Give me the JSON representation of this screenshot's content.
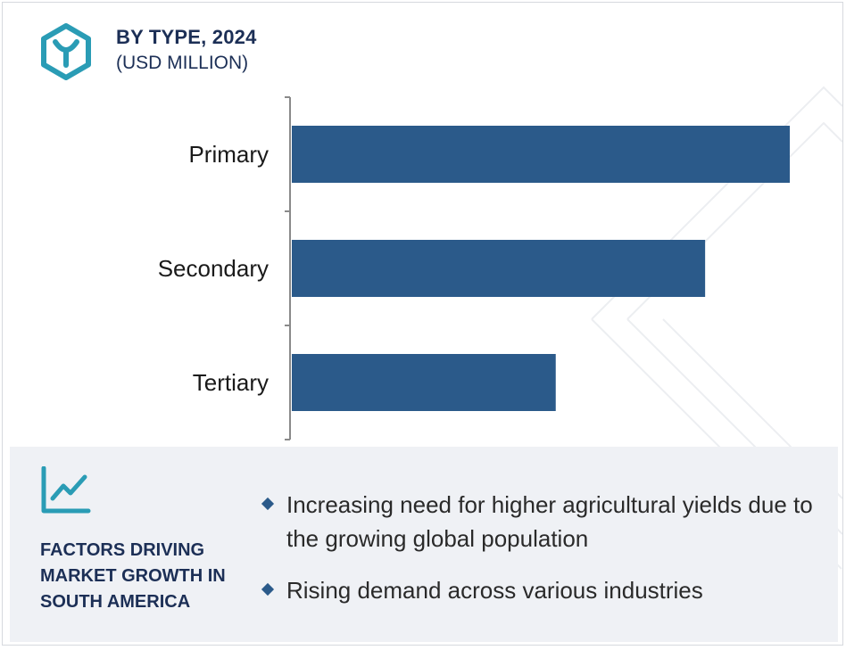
{
  "header": {
    "title": "BY TYPE, 2024",
    "subtitle": "(USD MILLION)",
    "logo_icon": "hexagon-y-logo-icon"
  },
  "chart_data": {
    "type": "bar",
    "orientation": "horizontal",
    "categories": [
      "Primary",
      "Secondary",
      "Tertiary"
    ],
    "values": [
      100,
      83,
      53
    ],
    "xlim": [
      0,
      100
    ],
    "grid": false,
    "bar_color": "#2b5a8a",
    "title": "BY TYPE, 2024",
    "xlabel": "",
    "ylabel": ""
  },
  "factors": {
    "icon": "trend-line-icon",
    "title": "FACTORS DRIVING MARKET GROWTH IN SOUTH AMERICA",
    "items": [
      "Increasing need for higher agricultural yields due to the growing global population",
      "Rising demand across various industries"
    ],
    "accent_color": "#2b5a8a"
  },
  "colors": {
    "navy_text": "#1c2f56",
    "teal_icon": "#2a9cb5",
    "panel_bg": "#eff1f5"
  }
}
